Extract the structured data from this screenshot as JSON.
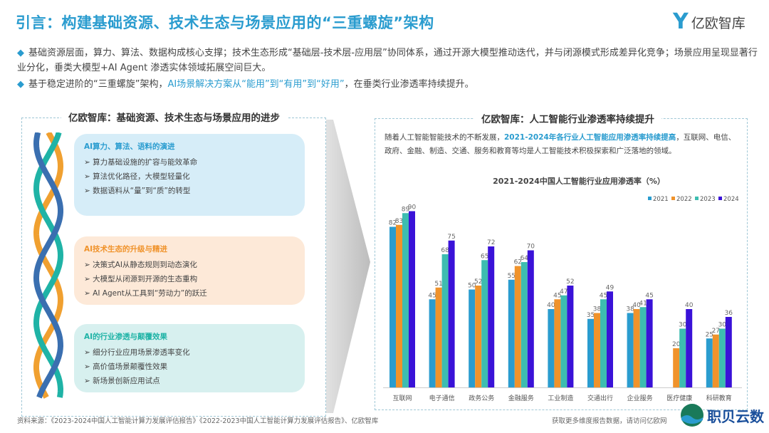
{
  "header": {
    "title": "引言：构建基础资源、技术生态与场景应用的“三重螺旋”架构",
    "logo_text": "亿欧智库"
  },
  "bullets": [
    {
      "text": "基础资源层面，算力、算法、数据构成核心支撑；技术生态形成“基础层-技术层-应用层”协同体系，通过开源大模型推动迭代，并与闭源模式形成差异化竞争；场景应用呈现显著行业分化，垂类大模型+AI Agent 渗透实体领域拓展空间巨大。"
    },
    {
      "pre": "基于稳定进阶的“三重螺旋”架构，",
      "highlight": "AI场景解决方案从“能用”到“有用”到“好用”",
      "post": "，在垂类行业渗透率持续提升。"
    }
  ],
  "left_panel": {
    "title": "亿欧智库：基础资源、技术生态与场景应用的进步",
    "cards": [
      {
        "heading": "AI算力、算法、语料的演进",
        "color": "#2a9ccf",
        "bg": "#d6edf8",
        "items": [
          "算力基础设施的扩容与能效革命",
          "算法优化路径，大模型轻量化",
          "数据语料从“量”到“质”的转型"
        ]
      },
      {
        "heading": "AI技术生态的升级与精进",
        "color": "#f0932b",
        "bg": "#fde9d8",
        "items": [
          "决策式AI从静态规则到动态演化",
          "大模型从闭源到开源的生态重构",
          "AI Agent从工具到“劳动力”的跃迁"
        ]
      },
      {
        "heading": "AI的行业渗透与颠覆效果",
        "color": "#1fb3a6",
        "bg": "#d7f0ef",
        "items": [
          "细分行业应用场景渗透率变化",
          "高价值场景颠覆性效果",
          "新场景创新应用试点"
        ]
      }
    ]
  },
  "right_panel": {
    "title": "亿欧智库：人工智能行业渗透率持续提升",
    "desc_pre": "随着人工智能智能技术的不断发展，",
    "desc_highlight": "2021-2024年各行业人工智能应用渗透率持续提高",
    "desc_post": "，互联网、电信、政府、金融、制造、交通、服务和教育等均是人工智能技术积极探索和广泛落地的领域。"
  },
  "chart_data": {
    "type": "bar",
    "title": "2021-2024中国人工智能行业应用渗透率（%）",
    "categories": [
      "互联网",
      "电子通信",
      "政务公务",
      "金融服务",
      "工业制造",
      "交通出行",
      "企业服务",
      "医疗健康",
      "科研教育"
    ],
    "series": [
      {
        "name": "2021",
        "color": "#2a9ccf",
        "values": [
          82,
          45,
          50,
          55,
          40,
          35,
          38,
          null,
          25
        ]
      },
      {
        "name": "2022",
        "color": "#f0932b",
        "values": [
          83,
          51,
          52,
          62,
          45,
          38,
          40,
          20,
          27
        ]
      },
      {
        "name": "2023",
        "color": "#3dbdb0",
        "values": [
          89,
          68,
          65,
          64,
          47,
          45,
          41,
          30,
          30
        ]
      },
      {
        "name": "2024",
        "color": "#3a12d8",
        "values": [
          90,
          75,
          72,
          70,
          52,
          49,
          45,
          40,
          36
        ]
      }
    ],
    "ylim": [
      0,
      100
    ],
    "legend": "top-right",
    "grid": false
  },
  "footer": {
    "source": "资料来源：《2023-2024中国人工智能计算力发展评估报告》《2022-2023中国人工智能计算力发展评估报告》、亿欧智库",
    "more": "获取更多维度报告数据，请访问亿欧网",
    "brand": "职贝云数"
  }
}
